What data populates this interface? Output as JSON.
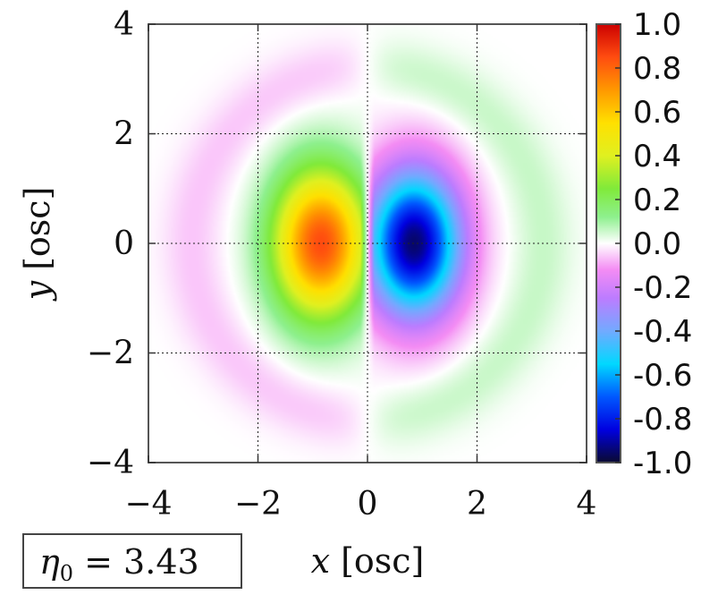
{
  "chart_data": {
    "type": "heatmap",
    "title": "",
    "xlabel": {
      "symbol": "x",
      "unit": "[osc]"
    },
    "ylabel": {
      "symbol": "y",
      "unit": "[osc]"
    },
    "xlim": [
      -4,
      4
    ],
    "ylim": [
      -4,
      4
    ],
    "xticks": [
      -4,
      -2,
      0,
      2,
      4
    ],
    "yticks": [
      -4,
      -2,
      0,
      2,
      4
    ],
    "xtick_labels": [
      "−4",
      "−2",
      "0",
      "2",
      "4"
    ],
    "ytick_labels": [
      "−4",
      "−2",
      "0",
      "2",
      "4"
    ],
    "grid": true,
    "field": {
      "description_kind": "antisymmetric dipole lobes",
      "positive_peak": {
        "x": -0.85,
        "y": 0.0,
        "value": 0.85
      },
      "negative_peak": {
        "x": 0.85,
        "y": 0.0,
        "value": -0.95
      },
      "sample_points": [
        {
          "x": -0.9,
          "y": 0.0,
          "value": 0.82
        },
        {
          "x": -1.5,
          "y": 0.0,
          "value": 0.45
        },
        {
          "x": -2.2,
          "y": 0.0,
          "value": 0.18
        },
        {
          "x": -0.9,
          "y": 1.8,
          "value": 0.15
        },
        {
          "x": 0.9,
          "y": 0.0,
          "value": -0.92
        },
        {
          "x": 1.5,
          "y": 0.0,
          "value": -0.4
        },
        {
          "x": 2.2,
          "y": 0.0,
          "value": -0.15
        },
        {
          "x": 0.9,
          "y": -1.8,
          "value": -0.15
        },
        {
          "x": 3.0,
          "y": 0.0,
          "value": 0.03
        },
        {
          "x": -3.0,
          "y": 0.0,
          "value": -0.03
        }
      ]
    },
    "colorbar": {
      "range": [
        -1.0,
        1.0
      ],
      "ticks": [
        "1.0",
        "0.8",
        "0.6",
        "0.4",
        "0.2",
        "0.0",
        "-0.2",
        "-0.4",
        "-0.6",
        "-0.8",
        "-1.0"
      ],
      "stops": [
        {
          "v": -1.0,
          "color": "#0a0a30"
        },
        {
          "v": -0.85,
          "color": "#0000e0"
        },
        {
          "v": -0.7,
          "color": "#0058ff"
        },
        {
          "v": -0.55,
          "color": "#00d8ff"
        },
        {
          "v": -0.4,
          "color": "#72aaff"
        },
        {
          "v": -0.25,
          "color": "#bc7cff"
        },
        {
          "v": -0.12,
          "color": "#f48cf4"
        },
        {
          "v": 0.0,
          "color": "#ffffff"
        },
        {
          "v": 0.12,
          "color": "#8ef08e"
        },
        {
          "v": 0.25,
          "color": "#80ea3a"
        },
        {
          "v": 0.4,
          "color": "#e0f020"
        },
        {
          "v": 0.55,
          "color": "#ffe000"
        },
        {
          "v": 0.7,
          "color": "#ff9800"
        },
        {
          "v": 0.85,
          "color": "#ff4c10"
        },
        {
          "v": 1.0,
          "color": "#cc0000"
        }
      ]
    },
    "annotation": {
      "symbol": "η",
      "subscript": "0",
      "text": " = 3.43"
    }
  }
}
